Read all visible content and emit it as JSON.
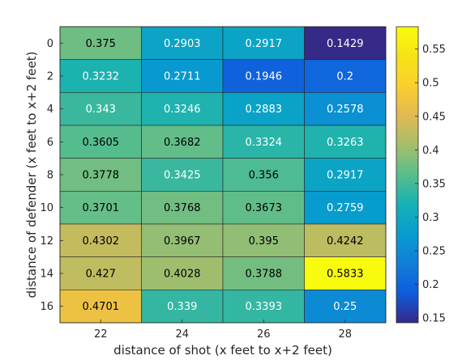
{
  "chart_data": {
    "type": "heatmap",
    "title": "",
    "xlabel": "distance of shot (x feet to x+2 feet)",
    "ylabel": "distance of defender (x feet to x+2 feet)",
    "x_categories": [
      "22",
      "24",
      "26",
      "28"
    ],
    "y_categories": [
      "0",
      "2",
      "4",
      "6",
      "8",
      "10",
      "12",
      "14",
      "16"
    ],
    "values": [
      [
        0.375,
        0.2903,
        0.2917,
        0.1429
      ],
      [
        0.3232,
        0.2711,
        0.1946,
        0.2
      ],
      [
        0.343,
        0.3246,
        0.2883,
        0.2578
      ],
      [
        0.3605,
        0.3682,
        0.3324,
        0.3263
      ],
      [
        0.3778,
        0.3425,
        0.356,
        0.2917
      ],
      [
        0.3701,
        0.3768,
        0.3673,
        0.2759
      ],
      [
        0.4302,
        0.3967,
        0.395,
        0.4242
      ],
      [
        0.427,
        0.4028,
        0.3788,
        0.5833
      ],
      [
        0.4701,
        0.339,
        0.3393,
        0.25
      ]
    ],
    "value_labels": [
      [
        "0.375",
        "0.2903",
        "0.2917",
        "0.1429"
      ],
      [
        "0.3232",
        "0.2711",
        "0.1946",
        "0.2"
      ],
      [
        "0.343",
        "0.3246",
        "0.2883",
        "0.2578"
      ],
      [
        "0.3605",
        "0.3682",
        "0.3324",
        "0.3263"
      ],
      [
        "0.3778",
        "0.3425",
        "0.356",
        "0.2917"
      ],
      [
        "0.3701",
        "0.3768",
        "0.3673",
        "0.2759"
      ],
      [
        "0.4302",
        "0.3967",
        "0.395",
        "0.4242"
      ],
      [
        "0.427",
        "0.4028",
        "0.3788",
        "0.5833"
      ],
      [
        "0.4701",
        "0.339",
        "0.3393",
        "0.25"
      ]
    ],
    "colormap": "parula",
    "color_range": [
      0.1429,
      0.5833
    ],
    "colorbar": {
      "ticks": [
        0.15,
        0.2,
        0.25,
        0.3,
        0.35,
        0.4,
        0.45,
        0.5,
        0.55
      ],
      "tick_labels": [
        "0.15",
        "0.2",
        "0.25",
        "0.3",
        "0.35",
        "0.4",
        "0.45",
        "0.5",
        "0.55"
      ]
    },
    "grid": true,
    "legend": "colorbar-right"
  }
}
